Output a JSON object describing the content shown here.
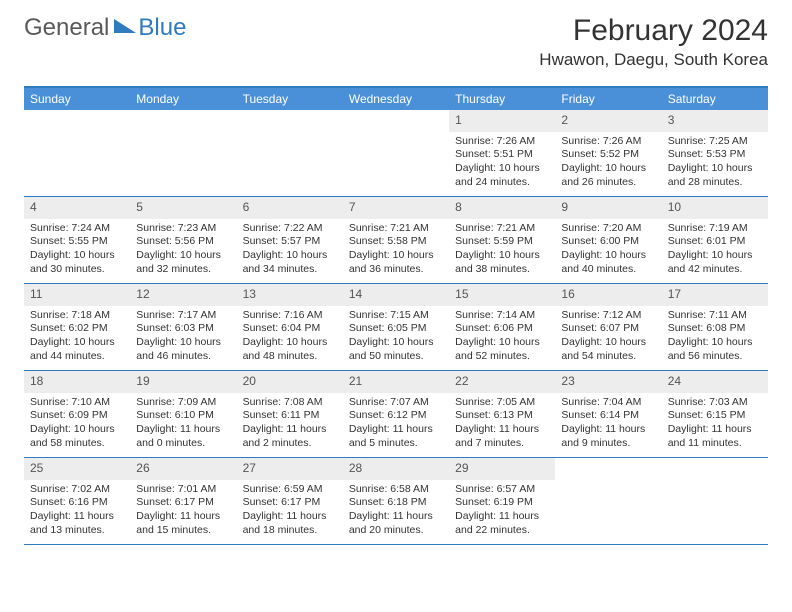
{
  "logo": {
    "general": "General",
    "blue": "Blue"
  },
  "title": "February 2024",
  "location": "Hwawon, Daegu, South Korea",
  "colors": {
    "header_bar": "#4a90d9",
    "border": "#2f7bbf",
    "daynum_bg": "#ededed",
    "text": "#333333"
  },
  "weekdays": [
    "Sunday",
    "Monday",
    "Tuesday",
    "Wednesday",
    "Thursday",
    "Friday",
    "Saturday"
  ],
  "weeks": [
    [
      {
        "empty": true
      },
      {
        "empty": true
      },
      {
        "empty": true
      },
      {
        "empty": true
      },
      {
        "num": "1",
        "sunrise": "Sunrise: 7:26 AM",
        "sunset": "Sunset: 5:51 PM",
        "day1": "Daylight: 10 hours",
        "day2": "and 24 minutes."
      },
      {
        "num": "2",
        "sunrise": "Sunrise: 7:26 AM",
        "sunset": "Sunset: 5:52 PM",
        "day1": "Daylight: 10 hours",
        "day2": "and 26 minutes."
      },
      {
        "num": "3",
        "sunrise": "Sunrise: 7:25 AM",
        "sunset": "Sunset: 5:53 PM",
        "day1": "Daylight: 10 hours",
        "day2": "and 28 minutes."
      }
    ],
    [
      {
        "num": "4",
        "sunrise": "Sunrise: 7:24 AM",
        "sunset": "Sunset: 5:55 PM",
        "day1": "Daylight: 10 hours",
        "day2": "and 30 minutes."
      },
      {
        "num": "5",
        "sunrise": "Sunrise: 7:23 AM",
        "sunset": "Sunset: 5:56 PM",
        "day1": "Daylight: 10 hours",
        "day2": "and 32 minutes."
      },
      {
        "num": "6",
        "sunrise": "Sunrise: 7:22 AM",
        "sunset": "Sunset: 5:57 PM",
        "day1": "Daylight: 10 hours",
        "day2": "and 34 minutes."
      },
      {
        "num": "7",
        "sunrise": "Sunrise: 7:21 AM",
        "sunset": "Sunset: 5:58 PM",
        "day1": "Daylight: 10 hours",
        "day2": "and 36 minutes."
      },
      {
        "num": "8",
        "sunrise": "Sunrise: 7:21 AM",
        "sunset": "Sunset: 5:59 PM",
        "day1": "Daylight: 10 hours",
        "day2": "and 38 minutes."
      },
      {
        "num": "9",
        "sunrise": "Sunrise: 7:20 AM",
        "sunset": "Sunset: 6:00 PM",
        "day1": "Daylight: 10 hours",
        "day2": "and 40 minutes."
      },
      {
        "num": "10",
        "sunrise": "Sunrise: 7:19 AM",
        "sunset": "Sunset: 6:01 PM",
        "day1": "Daylight: 10 hours",
        "day2": "and 42 minutes."
      }
    ],
    [
      {
        "num": "11",
        "sunrise": "Sunrise: 7:18 AM",
        "sunset": "Sunset: 6:02 PM",
        "day1": "Daylight: 10 hours",
        "day2": "and 44 minutes."
      },
      {
        "num": "12",
        "sunrise": "Sunrise: 7:17 AM",
        "sunset": "Sunset: 6:03 PM",
        "day1": "Daylight: 10 hours",
        "day2": "and 46 minutes."
      },
      {
        "num": "13",
        "sunrise": "Sunrise: 7:16 AM",
        "sunset": "Sunset: 6:04 PM",
        "day1": "Daylight: 10 hours",
        "day2": "and 48 minutes."
      },
      {
        "num": "14",
        "sunrise": "Sunrise: 7:15 AM",
        "sunset": "Sunset: 6:05 PM",
        "day1": "Daylight: 10 hours",
        "day2": "and 50 minutes."
      },
      {
        "num": "15",
        "sunrise": "Sunrise: 7:14 AM",
        "sunset": "Sunset: 6:06 PM",
        "day1": "Daylight: 10 hours",
        "day2": "and 52 minutes."
      },
      {
        "num": "16",
        "sunrise": "Sunrise: 7:12 AM",
        "sunset": "Sunset: 6:07 PM",
        "day1": "Daylight: 10 hours",
        "day2": "and 54 minutes."
      },
      {
        "num": "17",
        "sunrise": "Sunrise: 7:11 AM",
        "sunset": "Sunset: 6:08 PM",
        "day1": "Daylight: 10 hours",
        "day2": "and 56 minutes."
      }
    ],
    [
      {
        "num": "18",
        "sunrise": "Sunrise: 7:10 AM",
        "sunset": "Sunset: 6:09 PM",
        "day1": "Daylight: 10 hours",
        "day2": "and 58 minutes."
      },
      {
        "num": "19",
        "sunrise": "Sunrise: 7:09 AM",
        "sunset": "Sunset: 6:10 PM",
        "day1": "Daylight: 11 hours",
        "day2": "and 0 minutes."
      },
      {
        "num": "20",
        "sunrise": "Sunrise: 7:08 AM",
        "sunset": "Sunset: 6:11 PM",
        "day1": "Daylight: 11 hours",
        "day2": "and 2 minutes."
      },
      {
        "num": "21",
        "sunrise": "Sunrise: 7:07 AM",
        "sunset": "Sunset: 6:12 PM",
        "day1": "Daylight: 11 hours",
        "day2": "and 5 minutes."
      },
      {
        "num": "22",
        "sunrise": "Sunrise: 7:05 AM",
        "sunset": "Sunset: 6:13 PM",
        "day1": "Daylight: 11 hours",
        "day2": "and 7 minutes."
      },
      {
        "num": "23",
        "sunrise": "Sunrise: 7:04 AM",
        "sunset": "Sunset: 6:14 PM",
        "day1": "Daylight: 11 hours",
        "day2": "and 9 minutes."
      },
      {
        "num": "24",
        "sunrise": "Sunrise: 7:03 AM",
        "sunset": "Sunset: 6:15 PM",
        "day1": "Daylight: 11 hours",
        "day2": "and 11 minutes."
      }
    ],
    [
      {
        "num": "25",
        "sunrise": "Sunrise: 7:02 AM",
        "sunset": "Sunset: 6:16 PM",
        "day1": "Daylight: 11 hours",
        "day2": "and 13 minutes."
      },
      {
        "num": "26",
        "sunrise": "Sunrise: 7:01 AM",
        "sunset": "Sunset: 6:17 PM",
        "day1": "Daylight: 11 hours",
        "day2": "and 15 minutes."
      },
      {
        "num": "27",
        "sunrise": "Sunrise: 6:59 AM",
        "sunset": "Sunset: 6:17 PM",
        "day1": "Daylight: 11 hours",
        "day2": "and 18 minutes."
      },
      {
        "num": "28",
        "sunrise": "Sunrise: 6:58 AM",
        "sunset": "Sunset: 6:18 PM",
        "day1": "Daylight: 11 hours",
        "day2": "and 20 minutes."
      },
      {
        "num": "29",
        "sunrise": "Sunrise: 6:57 AM",
        "sunset": "Sunset: 6:19 PM",
        "day1": "Daylight: 11 hours",
        "day2": "and 22 minutes."
      },
      {
        "empty": true
      },
      {
        "empty": true
      }
    ]
  ]
}
